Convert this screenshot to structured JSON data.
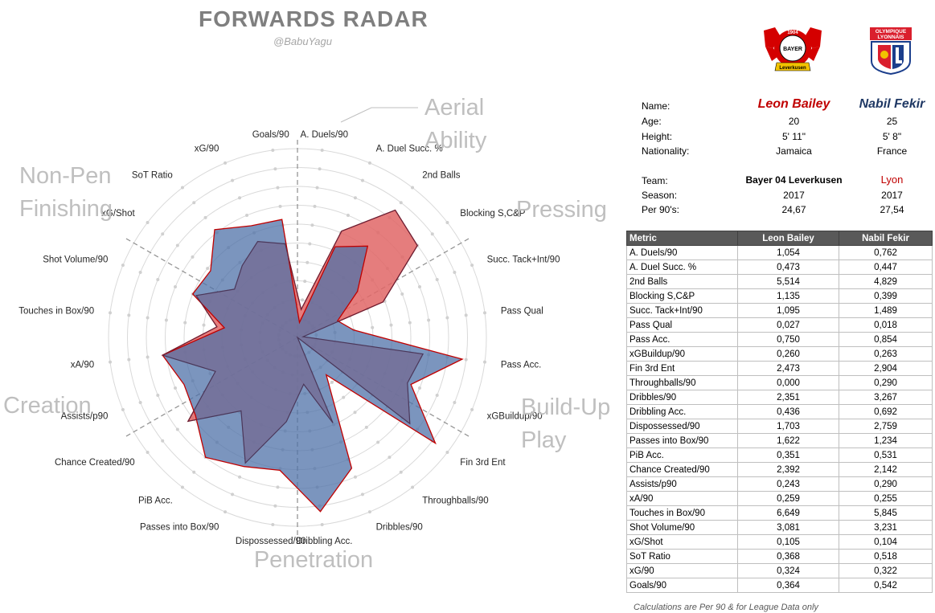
{
  "header": {
    "title": "FORWARDS RADAR",
    "handle": "@BabuYagu"
  },
  "logos": {
    "left": {
      "icon": "bayer-leverkusen-crest",
      "year": "1904",
      "text": "BAYER",
      "ring": "Leverkusen"
    },
    "right": {
      "icon": "olympique-lyonnais-crest",
      "line1": "OLYMPIQUE",
      "line2": "LYONNAIS"
    }
  },
  "colors": {
    "player1": "#c00000",
    "player2": "#1f3864",
    "fill1": "#e06666",
    "fill2": "#4f71a8",
    "overlap": "#5b3a72"
  },
  "players": {
    "labels": {
      "name": "Name:",
      "age": "Age:",
      "height": "Height:",
      "nationality": "Nationality:",
      "team": "Team:",
      "season": "Season:",
      "per90": "Per 90's:"
    },
    "p1": {
      "name": "Leon Bailey",
      "age": "20",
      "height": "5' 11\"",
      "nationality": "Jamaica",
      "team": "Bayer 04 Leverkusen",
      "season": "2017",
      "per90": "24,67"
    },
    "p2": {
      "name": "Nabil Fekir",
      "age": "25",
      "height": "5' 8\"",
      "nationality": "France",
      "team": "Lyon",
      "season": "2017",
      "per90": "27,54"
    }
  },
  "table": {
    "headers": [
      "Metric",
      "Leon Bailey",
      "Nabil Fekir"
    ],
    "rows": [
      [
        "A. Duels/90",
        "1,054",
        "0,762"
      ],
      [
        "A. Duel Succ. %",
        "0,473",
        "0,447"
      ],
      [
        "2nd Balls",
        "5,514",
        "4,829"
      ],
      [
        "Blocking S,C&P",
        "1,135",
        "0,399"
      ],
      [
        "Succ. Tack+Int/90",
        "1,095",
        "1,489"
      ],
      [
        "Pass Qual",
        "0,027",
        "0,018"
      ],
      [
        "Pass Acc.",
        "0,750",
        "0,854"
      ],
      [
        "xGBuildup/90",
        "0,260",
        "0,263"
      ],
      [
        "Fin 3rd Ent",
        "2,473",
        "2,904"
      ],
      [
        "Throughballs/90",
        "0,000",
        "0,290"
      ],
      [
        "Dribbles/90",
        "2,351",
        "3,267"
      ],
      [
        "Dribbling Acc.",
        "0,436",
        "0,692"
      ],
      [
        "Dispossessed/90",
        "1,703",
        "2,759"
      ],
      [
        "Passes into Box/90",
        "1,622",
        "1,234"
      ],
      [
        "PiB Acc.",
        "0,351",
        "0,531"
      ],
      [
        "Chance Created/90",
        "2,392",
        "2,142"
      ],
      [
        "Assists/p90",
        "0,243",
        "0,290"
      ],
      [
        "xA/90",
        "0,259",
        "0,255"
      ],
      [
        "Touches in Box/90",
        "6,649",
        "5,845"
      ],
      [
        "Shot Volume/90",
        "3,081",
        "3,231"
      ],
      [
        "xG/Shot",
        "0,105",
        "0,104"
      ],
      [
        "SoT Ratio",
        "0,368",
        "0,518"
      ],
      [
        "xG/90",
        "0,324",
        "0,322"
      ],
      [
        "Goals/90",
        "0,364",
        "0,542"
      ]
    ]
  },
  "note": "Calculations are Per 90 & for League Data only",
  "chart_data": {
    "type": "radar",
    "title": "FORWARDS RADAR",
    "axes": [
      "A. Duels/90",
      "A. Duel Succ. %",
      "2nd Balls",
      "Blocking S,C&P",
      "Succ. Tack+Int/90",
      "Pass Qual",
      "Pass Acc.",
      "xGBuildup/90",
      "Fin 3rd Ent",
      "Throughballs/90",
      "Dribbles/90",
      "Dribbling Acc.",
      "Dispossessed/90",
      "Passes into Box/90",
      "PiB Acc.",
      "Chance Created/90",
      "Assists/p90",
      "xA/90",
      "Touches in Box/90",
      "Shot Volume/90",
      "xG/Shot",
      "SoT Ratio",
      "xG/90",
      "Goals/90"
    ],
    "scale": [
      0,
      1
    ],
    "rings": 10,
    "series": [
      {
        "name": "Leon Bailey",
        "values": [
          0.15,
          0.61,
          0.85,
          0.8,
          0.49,
          0.03,
          0.67,
          0.63,
          0.75,
          0.0,
          0.49,
          0.25,
          0.45,
          0.72,
          0.49,
          0.73,
          0.47,
          0.72,
          0.43,
          0.58,
          0.42,
          0.48,
          0.55,
          0.5
        ]
      },
      {
        "name": "Nabil Fekir",
        "values": [
          0.08,
          0.52,
          0.61,
          0.4,
          0.23,
          0.3,
          0.88,
          0.65,
          0.92,
          0.25,
          0.75,
          0.93,
          0.71,
          0.74,
          0.8,
          0.68,
          0.65,
          0.72,
          0.39,
          0.6,
          0.58,
          0.72,
          0.64,
          0.63
        ]
      }
    ],
    "groups": [
      {
        "lines": [
          "Aerial",
          "Ability"
        ]
      },
      {
        "lines": [
          "Pressing"
        ]
      },
      {
        "lines": [
          "Build-Up",
          "Play"
        ]
      },
      {
        "lines": [
          "Penetration"
        ]
      },
      {
        "lines": [
          "Creation"
        ]
      },
      {
        "lines": [
          "Non-Pen",
          "Finishing"
        ]
      }
    ]
  }
}
